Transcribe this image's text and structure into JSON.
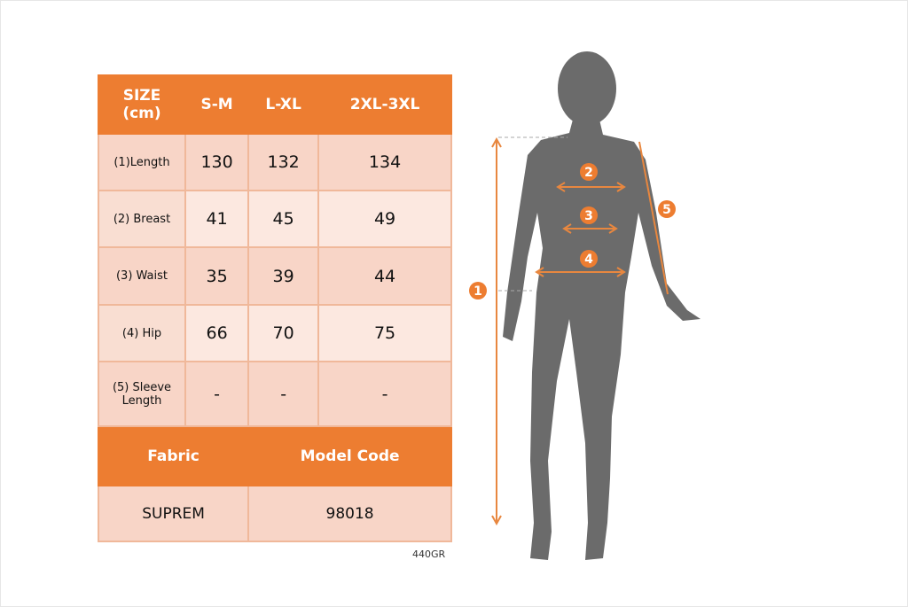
{
  "table": {
    "header": [
      "SIZE\n(cm)",
      "S-M",
      "L-XL",
      "2XL-3XL"
    ],
    "header_size": "SIZE",
    "header_unit": "(cm)",
    "rows": [
      {
        "label": "(1)Length",
        "values": [
          "130",
          "132",
          "134"
        ]
      },
      {
        "label": "(2) Breast",
        "values": [
          "41",
          "45",
          "49"
        ]
      },
      {
        "label": "(3) Waist",
        "values": [
          "35",
          "39",
          "44"
        ]
      },
      {
        "label": "(4) Hip",
        "values": [
          "66",
          "70",
          "75"
        ]
      },
      {
        "label": "(5) Sleeve Length",
        "values": [
          "-",
          "-",
          "-"
        ]
      }
    ],
    "fabric_label": "Fabric",
    "model_code_label": "Model Code",
    "fabric": "SUPREM",
    "model_code": "98018"
  },
  "code_note": "440GR",
  "markers": [
    "1",
    "2",
    "3",
    "4",
    "5"
  ],
  "colors": {
    "accent": "#ED7D31",
    "silhouette": "#6b6b6b"
  }
}
